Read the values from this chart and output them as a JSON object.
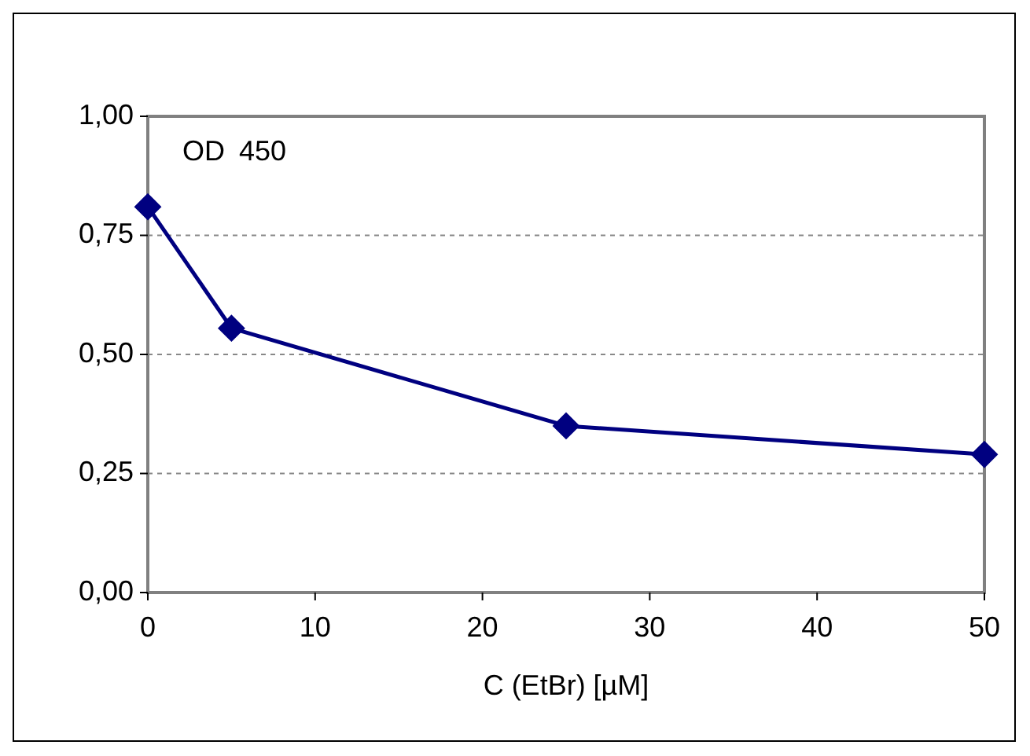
{
  "chart_data": {
    "type": "line",
    "xlabel": "C (EtBr) [µM]",
    "annotations": [
      "OD 450"
    ],
    "x": [
      0,
      5,
      25,
      50
    ],
    "series": [
      {
        "color": "#000080",
        "values": [
          0.81,
          0.555,
          0.35,
          0.29
        ]
      }
    ],
    "xlim": [
      0,
      50
    ],
    "xticks": [
      0,
      10,
      20,
      30,
      40,
      50
    ],
    "ylim": [
      0,
      1
    ],
    "yticks": [
      {
        "value": 0,
        "label": "0,00"
      },
      {
        "value": 0.25,
        "label": "0,25"
      },
      {
        "value": 0.5,
        "label": "0,50"
      },
      {
        "value": 0.75,
        "label": "0,75"
      },
      {
        "value": 1,
        "label": "1,00"
      }
    ],
    "grid": "y",
    "marker": "diamond",
    "line_style": "solid"
  }
}
